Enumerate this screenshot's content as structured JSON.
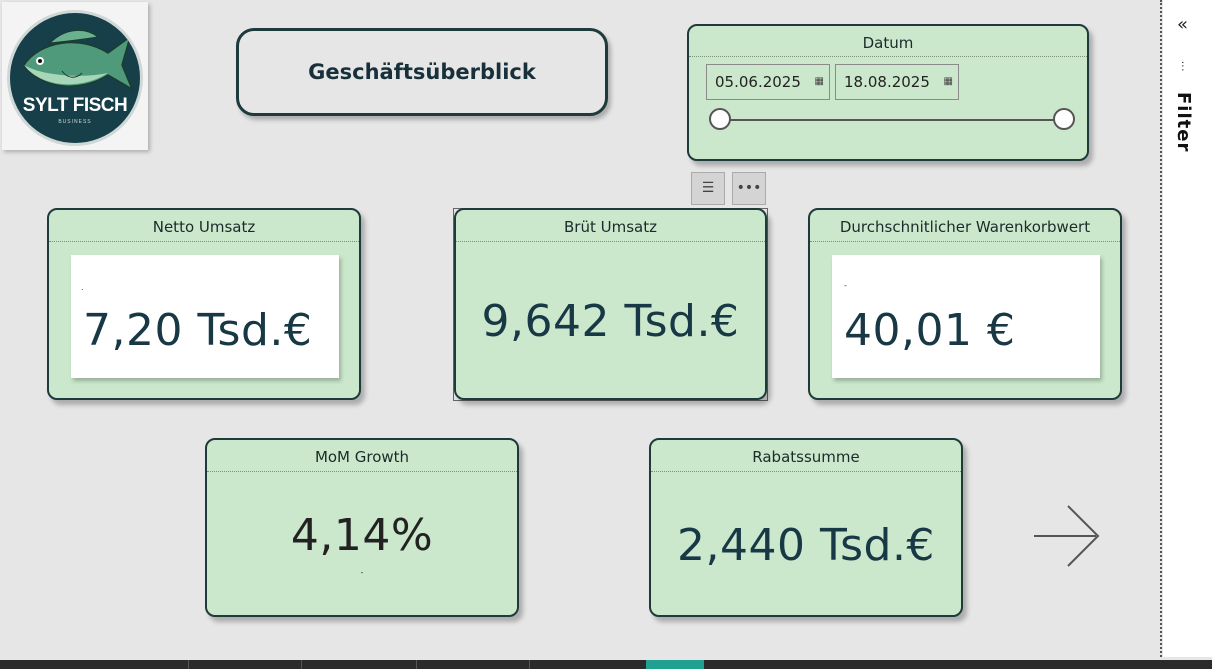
{
  "logo": {
    "brand": "SYLT FISCH",
    "subtitle": "BUSINESS"
  },
  "title": "Geschäftsüberblick",
  "date_filter": {
    "label": "Datum",
    "start": "05.06.2025",
    "end": "18.08.2025",
    "calendar_icon": "calendar-icon"
  },
  "visual_toolbar": {
    "filter_icon": "filter-icon",
    "more_icon": "more-options-icon"
  },
  "cards": {
    "netto": {
      "label": "Netto Umsatz",
      "value": "7,20 Tsd.€",
      "note": "."
    },
    "brutto": {
      "label": "Brüt Umsatz",
      "value": "9,642 Tsd.€"
    },
    "avg_basket": {
      "label": "Durchschnitlicher Warenkorbwert",
      "value": "40,01 €",
      "note": "-"
    },
    "mom": {
      "label": "MoM Growth",
      "value": "4,14%",
      "note": "-"
    },
    "rabatt": {
      "label": "Rabatssumme",
      "value": "2,440 Tsd.€"
    }
  },
  "filter_pane": {
    "label": "Filter",
    "collapse_icon": "double-chevron-left-icon"
  },
  "colors": {
    "card_bg": "#cbe8cc",
    "border": "#1e3a3a",
    "value_text": "#173844",
    "canvas": "#e6e6e6",
    "active_tab": "#20a090"
  }
}
